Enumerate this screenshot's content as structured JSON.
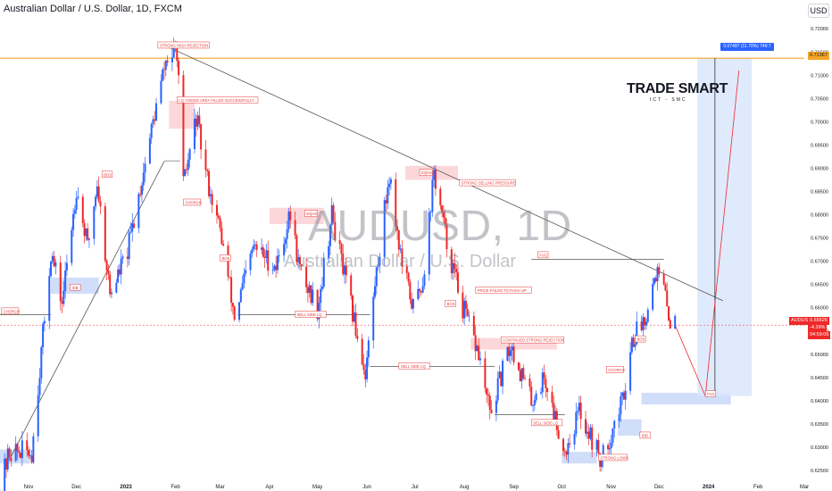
{
  "header": {
    "title": "Australian Dollar / U.S. Dollar, 1D, FXCM",
    "currency_button": "USD"
  },
  "watermark": {
    "symbol": "AUDUSD, 1D",
    "description": "Australian Dollar / U.S. Dollar"
  },
  "logo": {
    "line1": "TRADE SMART",
    "line2": "ICT - SMC"
  },
  "price_tags": {
    "target_label": "0.07497 (11.70%) 749.7",
    "target_price": "0.71367",
    "symbol": "AUDUSD",
    "last_price": "0.65626",
    "change": "-4.39%",
    "countdown": "04:59:06"
  },
  "colors": {
    "up": "#2962ff",
    "down": "#ef2828",
    "annotation_red": "#e53935",
    "supply_zone": "#fbd0d4",
    "demand_zone": "#c9d8f8",
    "target_zone": "#dbe6fd",
    "target_line": "#f5a623",
    "trendline": "#555555"
  },
  "chart_data": {
    "type": "candlestick",
    "title": "Australian Dollar / U.S. Dollar, 1D, FXCM",
    "xlabel": "",
    "ylabel": "",
    "ylim": [
      0.6225,
      0.7235
    ],
    "y_ticks": [
      "0.72500",
      "0.72000",
      "0.71500",
      "0.71000",
      "0.70500",
      "0.70000",
      "0.69500",
      "0.69000",
      "0.68500",
      "0.68000",
      "0.67500",
      "0.67000",
      "0.66500",
      "0.66000",
      "0.65500",
      "0.65000",
      "0.64500",
      "0.64000",
      "0.63500",
      "0.63000",
      "0.62500"
    ],
    "x_ticks": [
      "Nov",
      "Dec",
      "2023",
      "Feb",
      "Mar",
      "Apr",
      "May",
      "Jun",
      "Jul",
      "Aug",
      "Sep",
      "Oct",
      "Nov",
      "Dec",
      "2024",
      "Feb",
      "Mar"
    ],
    "grid": false,
    "price_path": [
      {
        "date": "2022-10-13",
        "price": 0.62
      },
      {
        "date": "2022-10-20",
        "price": 0.629
      },
      {
        "date": "2022-11-03",
        "price": 0.629
      },
      {
        "date": "2022-11-15",
        "price": 0.672
      },
      {
        "date": "2022-11-22",
        "price": 0.661
      },
      {
        "date": "2022-12-01",
        "price": 0.686
      },
      {
        "date": "2022-12-08",
        "price": 0.673
      },
      {
        "date": "2022-12-14",
        "price": 0.687
      },
      {
        "date": "2022-12-22",
        "price": 0.663
      },
      {
        "date": "2023-01-02",
        "price": 0.672
      },
      {
        "date": "2023-01-18",
        "price": 0.7
      },
      {
        "date": "2023-01-26",
        "price": 0.713
      },
      {
        "date": "2023-02-02",
        "price": 0.7155
      },
      {
        "date": "2023-02-06",
        "price": 0.686
      },
      {
        "date": "2023-02-14",
        "price": 0.701
      },
      {
        "date": "2023-02-20",
        "price": 0.689
      },
      {
        "date": "2023-03-02",
        "price": 0.675
      },
      {
        "date": "2023-03-10",
        "price": 0.658
      },
      {
        "date": "2023-03-22",
        "price": 0.673
      },
      {
        "date": "2023-04-05",
        "price": 0.669
      },
      {
        "date": "2023-04-14",
        "price": 0.68
      },
      {
        "date": "2023-04-20",
        "price": 0.668
      },
      {
        "date": "2023-05-01",
        "price": 0.66
      },
      {
        "date": "2023-05-10",
        "price": 0.68
      },
      {
        "date": "2023-05-19",
        "price": 0.665
      },
      {
        "date": "2023-05-31",
        "price": 0.646
      },
      {
        "date": "2023-06-06",
        "price": 0.665
      },
      {
        "date": "2023-06-15",
        "price": 0.689
      },
      {
        "date": "2023-06-23",
        "price": 0.669
      },
      {
        "date": "2023-06-30",
        "price": 0.66
      },
      {
        "date": "2023-07-06",
        "price": 0.666
      },
      {
        "date": "2023-07-13",
        "price": 0.689
      },
      {
        "date": "2023-07-21",
        "price": 0.674
      },
      {
        "date": "2023-07-31",
        "price": 0.66
      },
      {
        "date": "2023-08-10",
        "price": 0.65
      },
      {
        "date": "2023-08-17",
        "price": 0.637
      },
      {
        "date": "2023-08-30",
        "price": 0.652
      },
      {
        "date": "2023-09-12",
        "price": 0.64
      },
      {
        "date": "2023-09-20",
        "price": 0.645
      },
      {
        "date": "2023-10-03",
        "price": 0.629
      },
      {
        "date": "2023-10-12",
        "price": 0.638
      },
      {
        "date": "2023-10-26",
        "price": 0.627
      },
      {
        "date": "2023-11-08",
        "price": 0.64
      },
      {
        "date": "2023-11-14",
        "price": 0.653
      },
      {
        "date": "2023-11-22",
        "price": 0.658
      },
      {
        "date": "2023-11-29",
        "price": 0.668
      },
      {
        "date": "2023-12-04",
        "price": 0.664
      },
      {
        "date": "2023-12-07",
        "price": 0.658
      },
      {
        "date": "2023-12-11",
        "price": 0.6563
      }
    ],
    "annotations": [
      {
        "text": "STRONG HIGH REJECTION",
        "date": "2023-01-21",
        "price": 0.7164
      },
      {
        "text": "LQ VOIDED AREA FILLED SUCCESSFULLY",
        "date": "2023-02-02",
        "price": 0.7046
      },
      {
        "text": "BOS",
        "date": "2022-12-17",
        "price": 0.6886
      },
      {
        "text": "CHORCH",
        "date": "2023-02-06",
        "price": 0.6826
      },
      {
        "text": "EQHS",
        "date": "2023-04-23",
        "price": 0.6802
      },
      {
        "text": "EQHS",
        "date": "2023-07-04",
        "price": 0.689
      },
      {
        "text": "STRONG SELLING PRESSURE",
        "date": "2023-07-29",
        "price": 0.6868
      },
      {
        "text": "BOS",
        "date": "2023-03-01",
        "price": 0.6706
      },
      {
        "text": "IDB",
        "date": "2022-11-27",
        "price": 0.6643
      },
      {
        "text": "CHORCH",
        "date": "2022-10-15",
        "price": 0.6592
      },
      {
        "text": "SELL SIDE LQ",
        "date": "2023-04-17",
        "price": 0.6585
      },
      {
        "text": "PRICE FAILED TO PUSH UP",
        "date": "2023-08-08",
        "price": 0.6637
      },
      {
        "text": "BOS",
        "date": "2023-07-20",
        "price": 0.6608
      },
      {
        "text": "FVG",
        "date": "2023-09-16",
        "price": 0.6713
      },
      {
        "text": "CONTINUED STRONG REJECTION",
        "date": "2023-08-24",
        "price": 0.653
      },
      {
        "text": "SELL SIDE LQ",
        "date": "2023-06-21",
        "price": 0.6474
      },
      {
        "text": "BOS",
        "date": "2023-11-16",
        "price": 0.6532
      },
      {
        "text": "CHORCH",
        "date": "2023-10-29",
        "price": 0.6466
      },
      {
        "text": "SELL SIDE LQ",
        "date": "2023-09-12",
        "price": 0.6352
      },
      {
        "text": "IDB",
        "date": "2023-11-19",
        "price": 0.6325
      },
      {
        "text": "STRONG LOWS",
        "date": "2023-10-24",
        "price": 0.6277
      },
      {
        "text": "FVG",
        "date": "2023-12-30",
        "price": 0.6414
      }
    ],
    "levels": {
      "strong_high": 0.71367,
      "fvg_projection": 0.6408,
      "last_price": 0.65626
    }
  }
}
